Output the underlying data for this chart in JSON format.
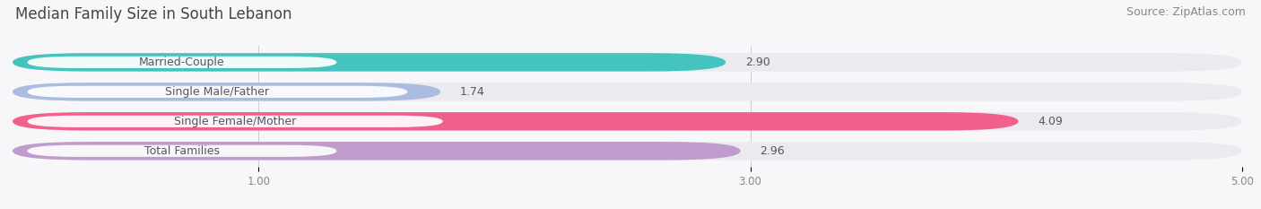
{
  "title": "Median Family Size in South Lebanon",
  "source": "Source: ZipAtlas.com",
  "categories": [
    "Married-Couple",
    "Single Male/Father",
    "Single Female/Mother",
    "Total Families"
  ],
  "values": [
    2.9,
    1.74,
    4.09,
    2.96
  ],
  "bar_colors": [
    "#45C4BF",
    "#AABDE0",
    "#F0608A",
    "#C09CCC"
  ],
  "bar_bg_color": "#EAEAEF",
  "xlim_start": 0,
  "xlim_end": 5.0,
  "xticks": [
    1.0,
    3.0,
    5.0
  ],
  "xtick_labels": [
    "1.00",
    "3.00",
    "5.00"
  ],
  "background_color": "#F7F7FA",
  "title_fontsize": 12,
  "source_fontsize": 9,
  "label_fontsize": 9,
  "value_fontsize": 9,
  "bar_height": 0.62
}
